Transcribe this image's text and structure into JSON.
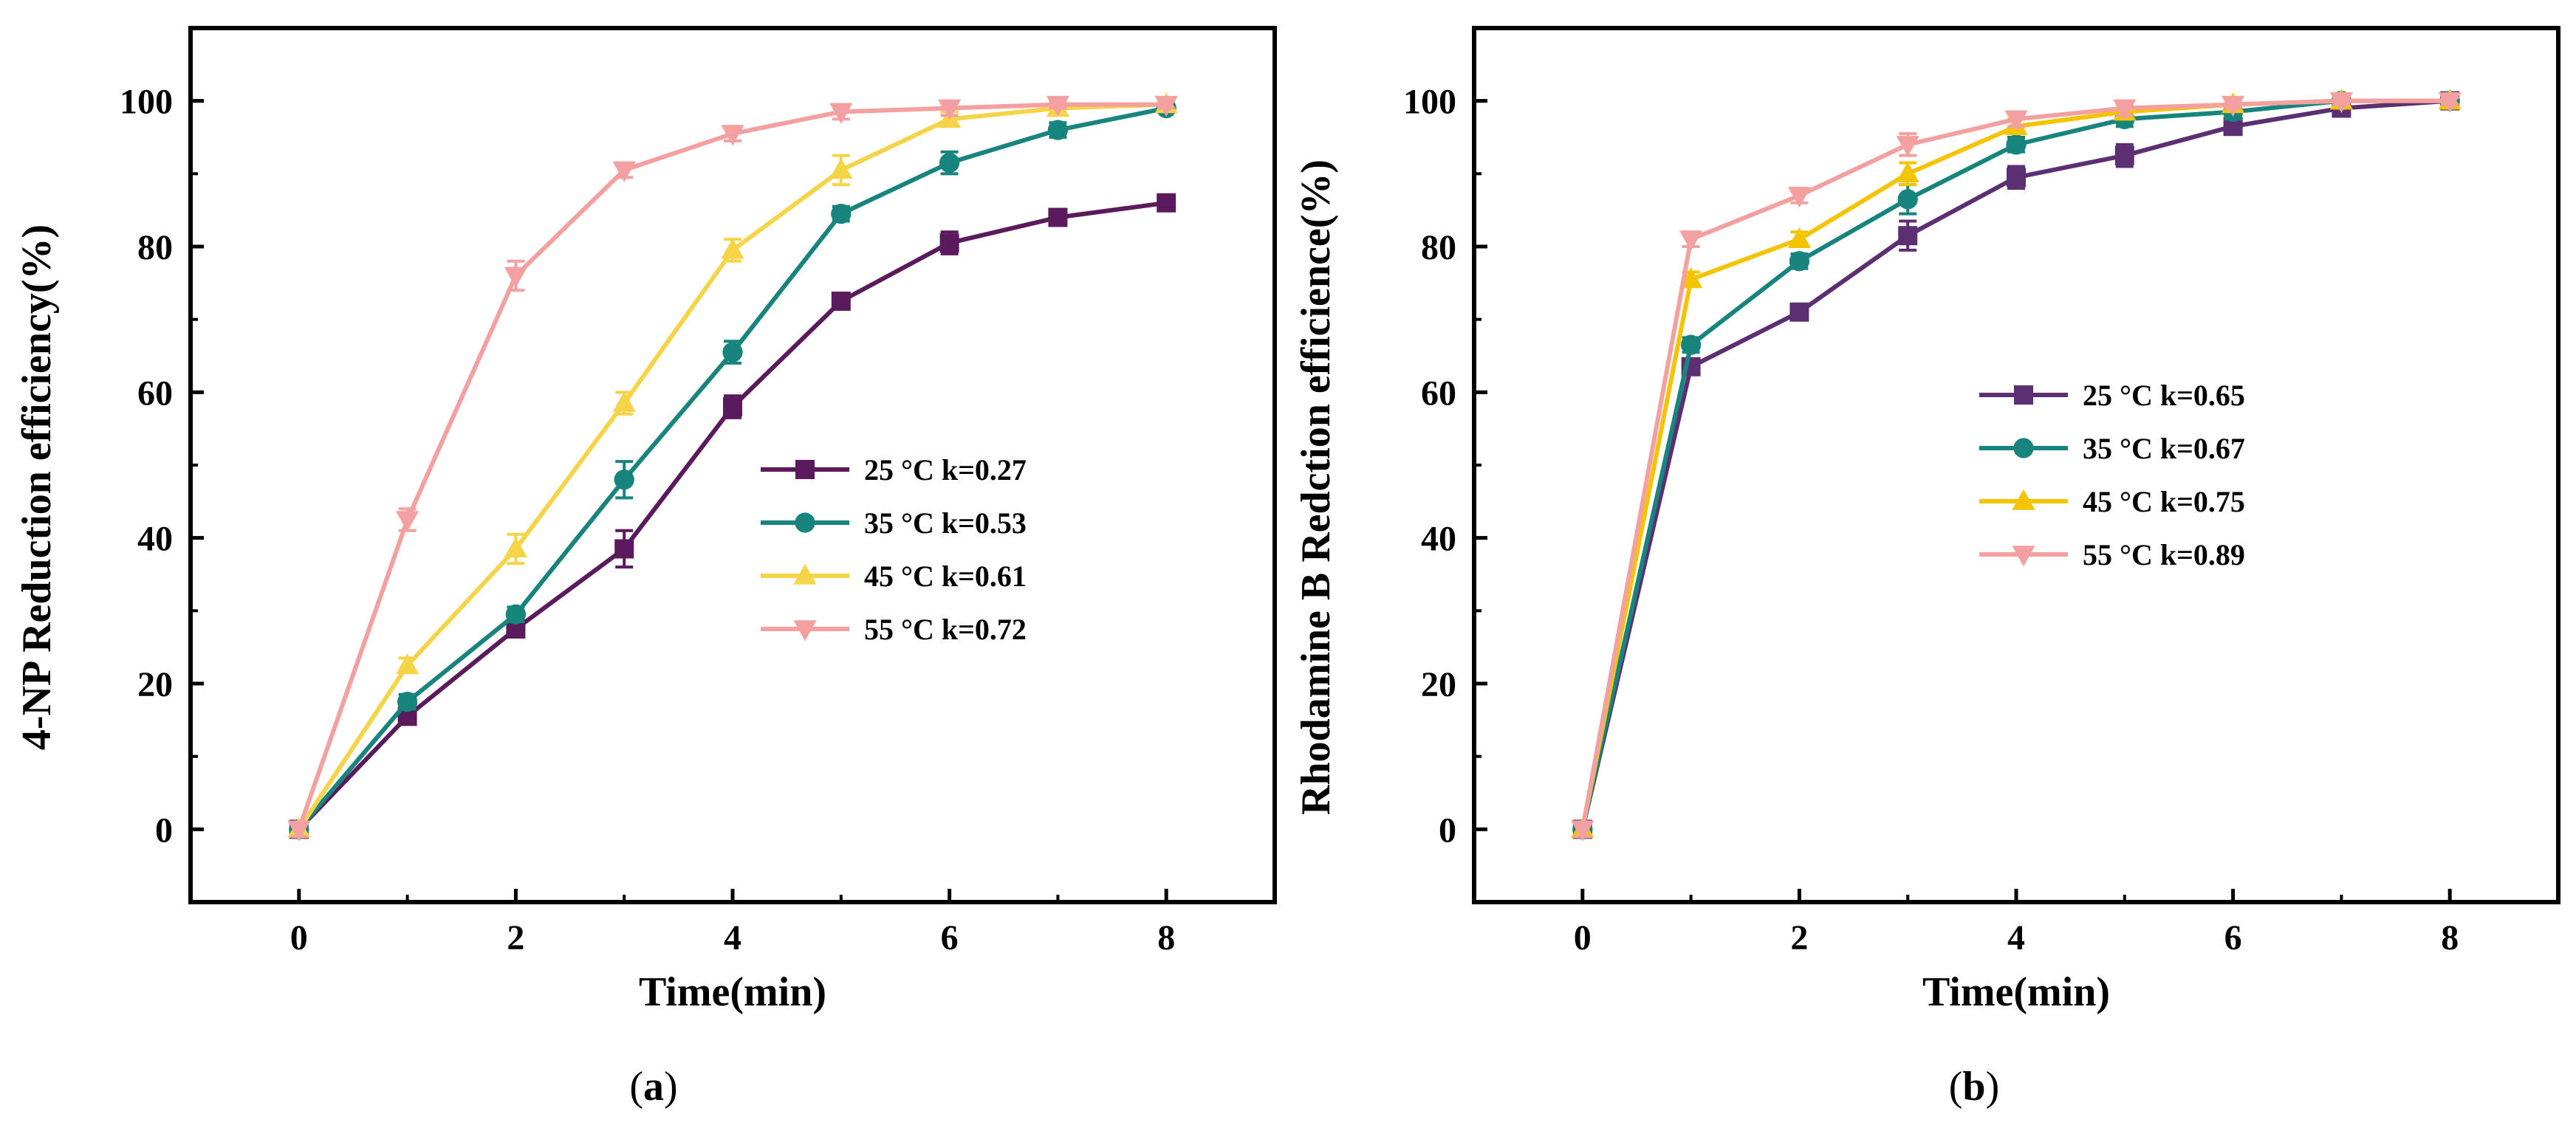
{
  "chart_data": [
    {
      "type": "line",
      "panel_label": "a",
      "xlabel": "Time(min)",
      "ylabel": "4-NP Reduction efficiency(%)",
      "xlim": [
        -1,
        9
      ],
      "ylim": [
        -10,
        110
      ],
      "xticks": [
        "0",
        "2",
        "4",
        "6",
        "8"
      ],
      "yticks": [
        "0",
        "20",
        "40",
        "60",
        "80",
        "100"
      ],
      "legend_position": "center-right",
      "x": [
        0,
        1,
        2,
        3,
        4,
        5,
        6,
        7,
        8
      ],
      "series": [
        {
          "name": "25 °C k=0.27",
          "marker": "square",
          "color": "#5b1a5b",
          "values": [
            0,
            15.5,
            27.5,
            38.5,
            58,
            72.5,
            80.5,
            84,
            86
          ],
          "errors": [
            1,
            1,
            1,
            2.5,
            1.5,
            1,
            1.5,
            1,
            1
          ]
        },
        {
          "name": "35 °C k=0.53",
          "marker": "circle",
          "color": "#17847e",
          "values": [
            0,
            17.5,
            29.5,
            48,
            65.5,
            84.5,
            91.5,
            96,
            99
          ],
          "errors": [
            1,
            1,
            1,
            2.5,
            1.5,
            1,
            1.5,
            1,
            0.5
          ]
        },
        {
          "name": "45 °C k=0.61",
          "marker": "triangle-up",
          "color": "#f5d547",
          "values": [
            0,
            22.5,
            38.5,
            58.5,
            79.5,
            90.5,
            97.5,
            99,
            99.5
          ],
          "errors": [
            1,
            1,
            2,
            1.5,
            1.5,
            2,
            1,
            1,
            0.5
          ]
        },
        {
          "name": "55 °C k=0.72",
          "marker": "triangle-down",
          "color": "#f4a0a0",
          "values": [
            0,
            42.5,
            76,
            90.5,
            95.5,
            98.5,
            99,
            99.5,
            99.5
          ],
          "errors": [
            1,
            1.5,
            2,
            1,
            1,
            1,
            1,
            0.5,
            0.5
          ]
        }
      ]
    },
    {
      "type": "line",
      "panel_label": "b",
      "xlabel": "Time(min)",
      "ylabel": "Rhodamine B Redction efficience(%)",
      "xlim": [
        -1,
        9
      ],
      "ylim": [
        -10,
        110
      ],
      "xticks": [
        "0",
        "2",
        "4",
        "6",
        "8"
      ],
      "yticks": [
        "0",
        "20",
        "40",
        "60",
        "80",
        "100"
      ],
      "legend_position": "center",
      "x": [
        0,
        1,
        2,
        3,
        4,
        5,
        6,
        7,
        8
      ],
      "series": [
        {
          "name": "25 °C k=0.65",
          "marker": "square",
          "color": "#5b2f72",
          "values": [
            0,
            63.5,
            71,
            81.5,
            89.5,
            92.5,
            96.5,
            99,
            100
          ],
          "errors": [
            1,
            1,
            1,
            2,
            1.5,
            1.5,
            1,
            0.5,
            0.5
          ]
        },
        {
          "name": "35 °C k=0.67",
          "marker": "circle",
          "color": "#17847e",
          "values": [
            0,
            66.5,
            78,
            86.5,
            94,
            97.5,
            98.5,
            100,
            100
          ],
          "errors": [
            1,
            1,
            1,
            2,
            1,
            1,
            1,
            0.5,
            0.5
          ]
        },
        {
          "name": "45 °C k=0.75",
          "marker": "triangle-up",
          "color": "#f5c400",
          "values": [
            0,
            75.5,
            81,
            90,
            96.5,
            98.5,
            99.5,
            100,
            100
          ],
          "errors": [
            1,
            1,
            1,
            1.5,
            1,
            1,
            0.5,
            0.5,
            0.5
          ]
        },
        {
          "name": "55 °C k=0.89",
          "marker": "triangle-down",
          "color": "#f4a0a0",
          "values": [
            0,
            81,
            87,
            94,
            97.5,
            99,
            99.5,
            100,
            100
          ],
          "errors": [
            1,
            1,
            1,
            1.5,
            1,
            1,
            0.5,
            0.5,
            0.5
          ]
        }
      ]
    }
  ]
}
